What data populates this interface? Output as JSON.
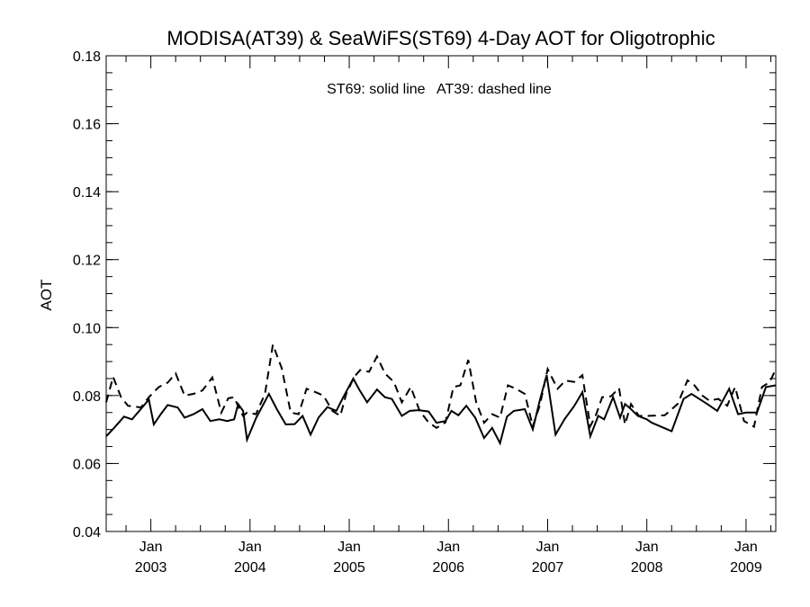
{
  "chart_data": {
    "type": "line",
    "title": "MODISA(AT39) & SeaWiFS(ST69) 4-Day AOT for Oligotrophic",
    "annotation": "ST69: solid line   AT39: dashed line",
    "ylabel": "AOT",
    "xlabel": "",
    "ylim": [
      0.04,
      0.18
    ],
    "yticks": [
      "0.04",
      "0.06",
      "0.08",
      "0.10",
      "0.12",
      "0.14",
      "0.16",
      "0.18"
    ],
    "xlim": [
      2002.55,
      2009.3
    ],
    "xticks": [
      {
        "month": "Jan",
        "year": "2003"
      },
      {
        "month": "Jan",
        "year": "2004"
      },
      {
        "month": "Jan",
        "year": "2005"
      },
      {
        "month": "Jan",
        "year": "2006"
      },
      {
        "month": "Jan",
        "year": "2007"
      },
      {
        "month": "Jan",
        "year": "2008"
      },
      {
        "month": "Jan",
        "year": "2009"
      }
    ],
    "series": [
      {
        "name": "ST69",
        "style": "solid",
        "x": [
          2002.55,
          2002.63,
          2002.73,
          2002.81,
          2002.98,
          2003.03,
          2003.1,
          2003.17,
          2003.27,
          2003.34,
          2003.43,
          2003.52,
          2003.6,
          2003.69,
          2003.77,
          2003.84,
          2003.88,
          2003.93,
          2003.97,
          2004.06,
          2004.19,
          2004.27,
          2004.36,
          2004.45,
          2004.53,
          2004.61,
          2004.69,
          2004.78,
          2004.87,
          2004.94,
          2005.04,
          2005.1,
          2005.18,
          2005.28,
          2005.36,
          2005.43,
          2005.53,
          2005.61,
          2005.7,
          2005.8,
          2005.88,
          2005.97,
          2006.03,
          2006.1,
          2006.18,
          2006.27,
          2006.36,
          2006.44,
          2006.52,
          2006.59,
          2006.66,
          2006.77,
          2006.85,
          2006.92,
          2006.99,
          2007.08,
          2007.17,
          2007.27,
          2007.35,
          2007.43,
          2007.51,
          2007.57,
          2007.66,
          2007.73,
          2007.78,
          2007.84,
          2007.91,
          2008.0,
          2008.05,
          2008.25,
          2008.37,
          2008.45,
          2008.61,
          2008.71,
          2008.83,
          2008.92,
          2009.0,
          2009.11,
          2009.2,
          2009.3
        ],
        "y": [
          0.068,
          0.0705,
          0.0738,
          0.073,
          0.0788,
          0.0715,
          0.0745,
          0.0772,
          0.0765,
          0.0735,
          0.0745,
          0.076,
          0.0725,
          0.073,
          0.0725,
          0.073,
          0.0775,
          0.0755,
          0.067,
          0.0733,
          0.0805,
          0.076,
          0.0715,
          0.0716,
          0.074,
          0.0685,
          0.0735,
          0.0766,
          0.0755,
          0.0795,
          0.085,
          0.0818,
          0.078,
          0.0818,
          0.0795,
          0.079,
          0.074,
          0.0755,
          0.0757,
          0.0753,
          0.072,
          0.0725,
          0.0755,
          0.0742,
          0.077,
          0.0735,
          0.0675,
          0.0705,
          0.066,
          0.0738,
          0.0755,
          0.076,
          0.07,
          0.0785,
          0.086,
          0.0685,
          0.073,
          0.077,
          0.081,
          0.068,
          0.074,
          0.073,
          0.0795,
          0.0735,
          0.0775,
          0.076,
          0.074,
          0.073,
          0.072,
          0.0695,
          0.079,
          0.0805,
          0.0775,
          0.0755,
          0.082,
          0.0745,
          0.075,
          0.075,
          0.0825,
          0.083
        ]
      },
      {
        "name": "AT39",
        "style": "dashed",
        "x": [
          2002.55,
          2002.62,
          2002.7,
          2002.77,
          2002.9,
          2002.98,
          2003.08,
          2003.17,
          2003.25,
          2003.34,
          2003.43,
          2003.52,
          2003.62,
          2003.71,
          2003.78,
          2003.84,
          2003.89,
          2003.93,
          2003.97,
          2004.06,
          2004.15,
          2004.23,
          2004.32,
          2004.41,
          2004.49,
          2004.57,
          2004.66,
          2004.74,
          2004.83,
          2004.91,
          2004.97,
          2005.05,
          2005.11,
          2005.2,
          2005.28,
          2005.36,
          2005.45,
          2005.53,
          2005.62,
          2005.71,
          2005.8,
          2005.88,
          2005.97,
          2006.05,
          2006.12,
          2006.2,
          2006.28,
          2006.36,
          2006.44,
          2006.52,
          2006.6,
          2006.68,
          2006.77,
          2006.85,
          2006.92,
          2007.0,
          2007.1,
          2007.18,
          2007.27,
          2007.35,
          2007.43,
          2007.49,
          2007.55,
          2007.64,
          2007.72,
          2007.78,
          2007.84,
          2007.92,
          2008.0,
          2008.18,
          2008.31,
          2008.41,
          2008.48,
          2008.56,
          2008.63,
          2008.72,
          2008.81,
          2008.89,
          2008.98,
          2009.08,
          2009.16,
          2009.24,
          2009.3
        ],
        "y": [
          0.078,
          0.0855,
          0.0795,
          0.077,
          0.0765,
          0.0795,
          0.0825,
          0.0838,
          0.0865,
          0.08,
          0.0805,
          0.0815,
          0.0853,
          0.075,
          0.0792,
          0.0795,
          0.0762,
          0.074,
          0.075,
          0.0745,
          0.0805,
          0.095,
          0.088,
          0.075,
          0.0745,
          0.082,
          0.081,
          0.08,
          0.0755,
          0.074,
          0.0805,
          0.0855,
          0.0875,
          0.087,
          0.0915,
          0.0865,
          0.084,
          0.078,
          0.0825,
          0.0755,
          0.0721,
          0.0705,
          0.0721,
          0.0825,
          0.083,
          0.0905,
          0.078,
          0.072,
          0.0745,
          0.0735,
          0.083,
          0.082,
          0.0805,
          0.071,
          0.077,
          0.0878,
          0.082,
          0.0844,
          0.084,
          0.086,
          0.071,
          0.0745,
          0.0795,
          0.0798,
          0.0822,
          0.0715,
          0.0775,
          0.074,
          0.074,
          0.0742,
          0.0775,
          0.0845,
          0.083,
          0.08,
          0.0785,
          0.079,
          0.077,
          0.0825,
          0.0725,
          0.0708,
          0.0825,
          0.084,
          0.0878
        ]
      }
    ]
  }
}
